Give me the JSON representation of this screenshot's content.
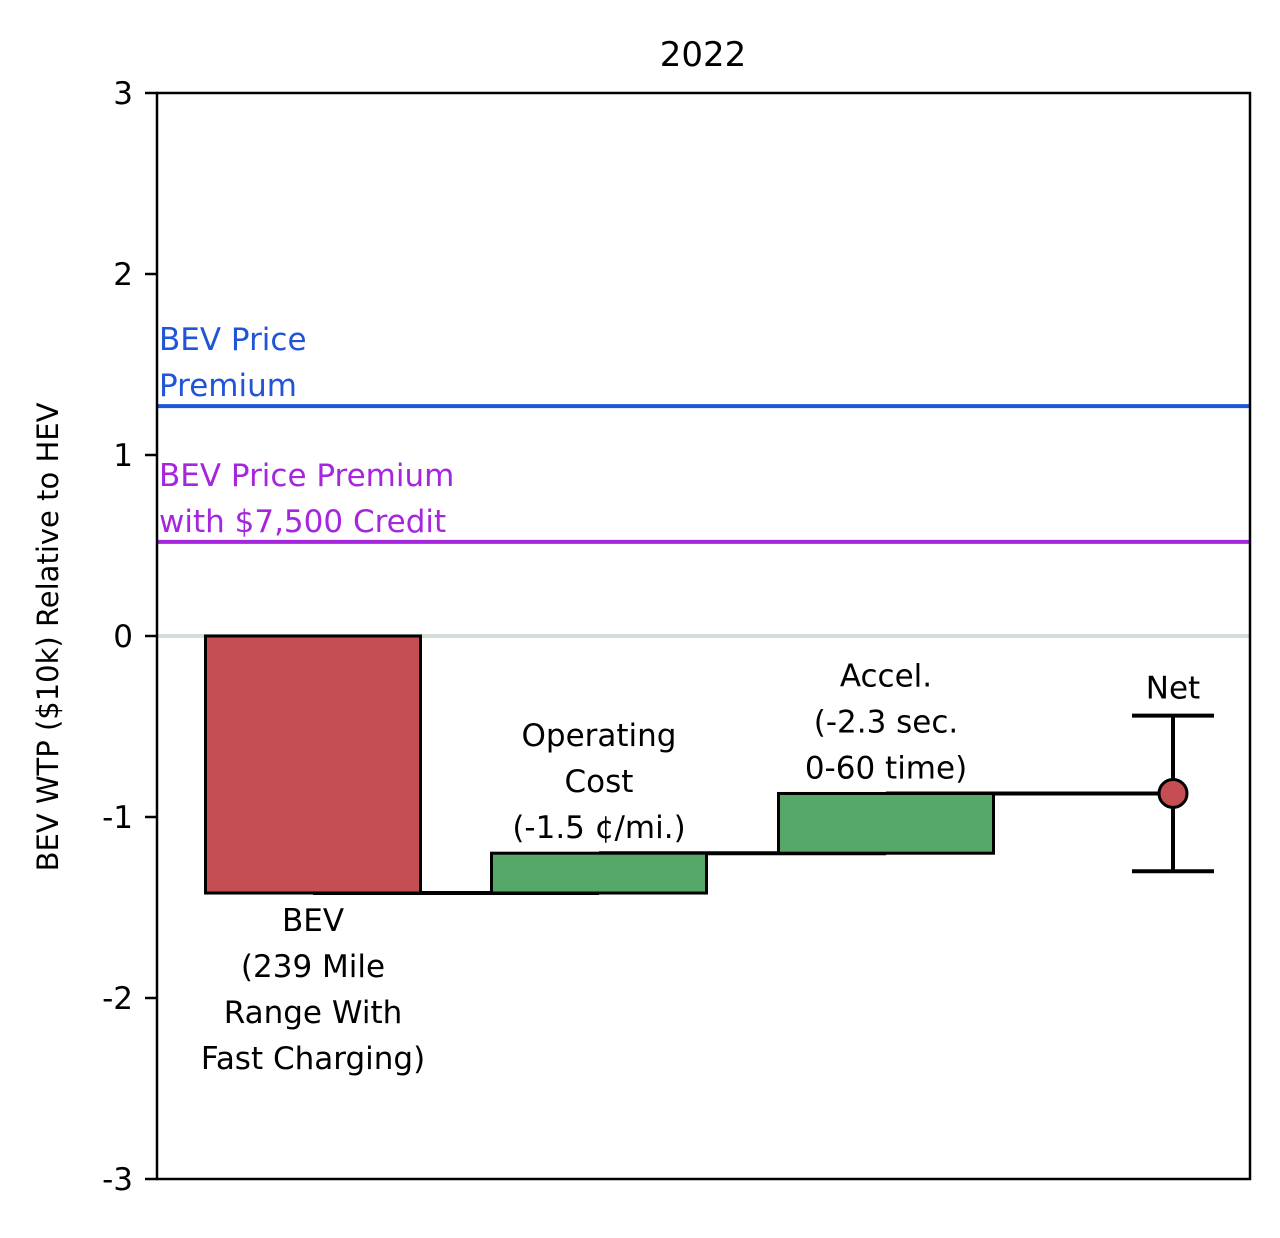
{
  "chart_data": {
    "type": "waterfall",
    "title": "2022",
    "ylabel": "BEV WTP ($10k) Relative to HEV",
    "xlabel": "",
    "ylim": [
      -3,
      3
    ],
    "yticks": [
      3,
      2,
      1,
      0,
      -1,
      -2,
      -3
    ],
    "ytick_labels": [
      "3",
      "2",
      "1",
      "0",
      "-1",
      "-2",
      "-3"
    ],
    "grid": false,
    "zero_line": true,
    "bars": [
      {
        "label_lines": [
          "BEV",
          "(239 Mile",
          "Range With",
          "Fast Charging)"
        ],
        "start": 0,
        "end": -1.42,
        "color": "#c44e52",
        "label_position": "below"
      },
      {
        "label_lines": [
          "Operating",
          "Cost",
          "(-1.5 ¢/mi.)"
        ],
        "start": -1.42,
        "end": -1.2,
        "color": "#55a868",
        "label_position": "above"
      },
      {
        "label_lines": [
          "Accel.",
          "(-2.3 sec.",
          "0-60 time)"
        ],
        "start": -1.2,
        "end": -0.87,
        "color": "#55a868",
        "label_position": "above"
      }
    ],
    "net": {
      "label": "Net",
      "value": -0.87,
      "error_low": -1.3,
      "error_high": -0.44,
      "color": "#c44e52"
    },
    "reference_lines": [
      {
        "label_lines": [
          "BEV Price",
          "Premium"
        ],
        "value": 1.27,
        "color": "#1f55d6"
      },
      {
        "label_lines": [
          "BEV Price Premium",
          "with $7,500 Credit"
        ],
        "value": 0.52,
        "color": "#a626dd"
      }
    ]
  }
}
